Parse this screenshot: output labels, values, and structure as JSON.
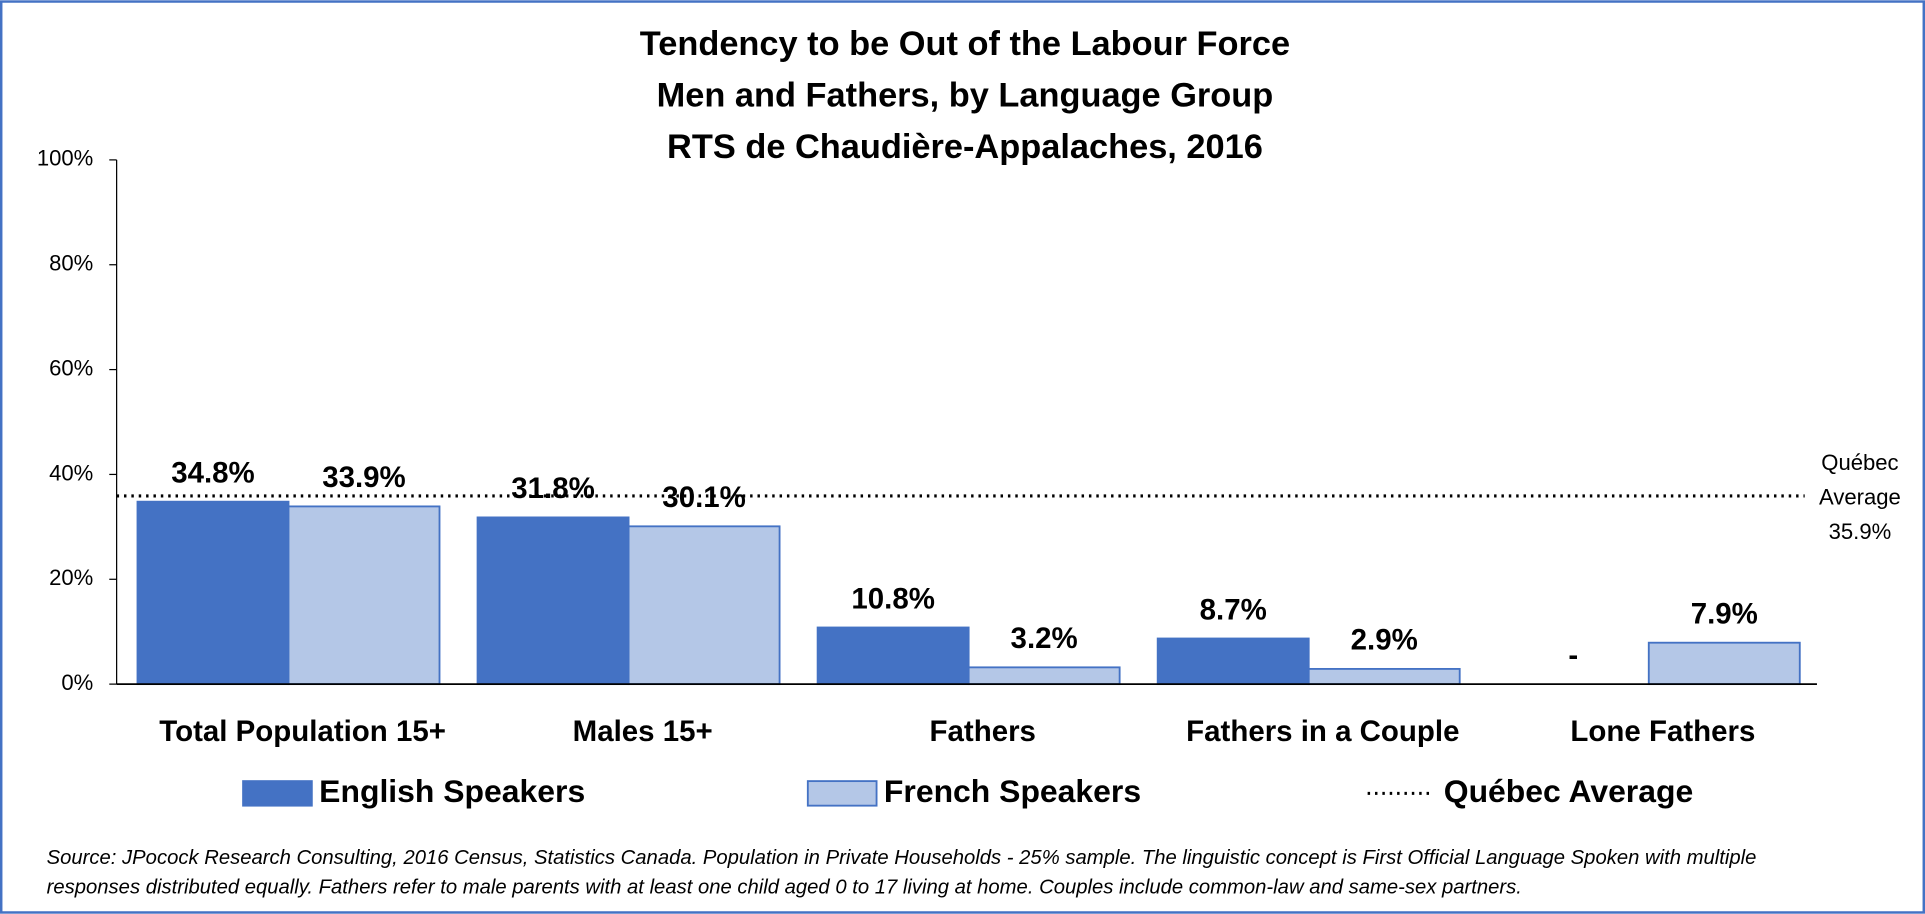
{
  "chart_data": {
    "type": "bar",
    "title": [
      "Tendency to be Out of the Labour Force",
      "Men and Fathers, by Language Group",
      "RTS de Chaudière-Appalaches, 2016"
    ],
    "categories": [
      "Total Population 15+",
      "Males 15+",
      "Fathers",
      "Fathers in a Couple",
      "Lone Fathers"
    ],
    "series": [
      {
        "name": "English Speakers",
        "color": "#4472c4",
        "values": [
          34.8,
          31.8,
          10.8,
          8.7,
          null
        ],
        "value_labels": [
          "34.8%",
          "31.8%",
          "10.8%",
          "8.7%",
          "-"
        ]
      },
      {
        "name": "French Speakers",
        "color": "#b4c7e7",
        "values": [
          33.9,
          30.1,
          3.2,
          2.9,
          7.9
        ],
        "value_labels": [
          "33.9%",
          "30.1%",
          "3.2%",
          "2.9%",
          "7.9%"
        ]
      }
    ],
    "reference_line": {
      "name": "Québec Average",
      "value": 35.9,
      "label": [
        "Québec",
        "Average",
        "35.9%"
      ]
    },
    "ylim": [
      0,
      100
    ],
    "yticks": [
      {
        "value": 0,
        "label": "0%"
      },
      {
        "value": 20,
        "label": "20%"
      },
      {
        "value": 40,
        "label": "40%"
      },
      {
        "value": 60,
        "label": "60%"
      },
      {
        "value": 80,
        "label": "80%"
      },
      {
        "value": 100,
        "label": "100%"
      }
    ],
    "grid": false,
    "legend": "bottom",
    "source": [
      "Source: JPocock Research Consulting, 2016 Census, Statistics Canada. Population in Private Households - 25% sample. The linguistic concept is First Official Language Spoken with multiple",
      "responses distributed equally. Fathers refer to male parents with at least one child aged 0 to 17 living at home. Couples include common-law and same-sex partners."
    ]
  }
}
